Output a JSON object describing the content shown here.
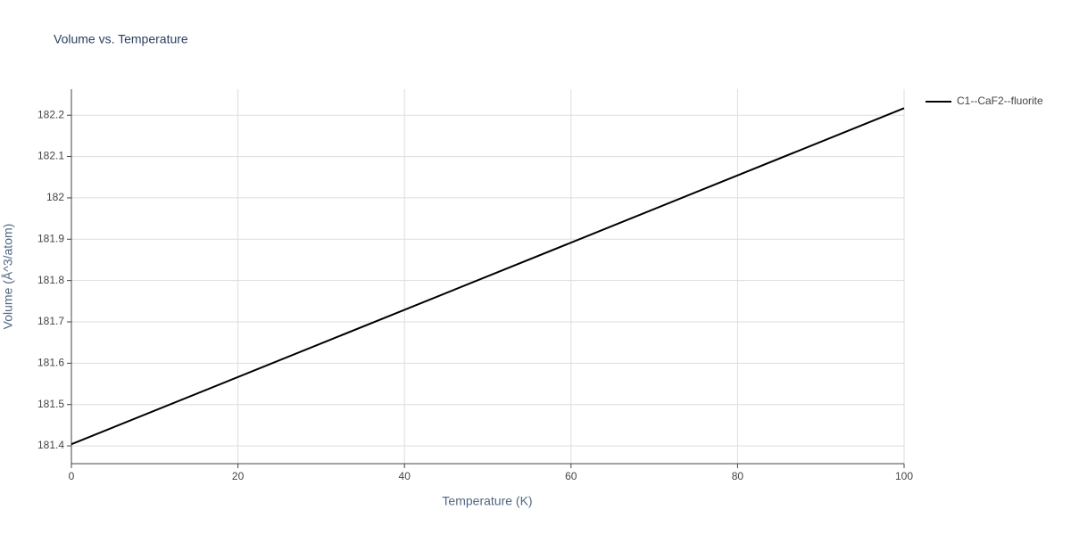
{
  "chart_data": {
    "type": "line",
    "title": "Volume vs. Temperature",
    "x_label": "Temperature (K)",
    "y_label": "Volume (Å^3/atom)",
    "x": [
      0,
      100
    ],
    "series": [
      {
        "name": "C1--CaF2--fluorite",
        "color": "#000000",
        "values": [
          181.404,
          182.217
        ]
      }
    ],
    "xlim": [
      0,
      100
    ],
    "xticks": [
      0,
      20,
      40,
      60,
      80,
      100
    ],
    "ylim": [
      181.357,
      182.263
    ],
    "yticks": [
      181.4,
      181.5,
      181.6,
      181.7,
      181.8,
      181.9,
      182,
      182.1,
      182.2
    ],
    "grid": true,
    "legend": "top-right"
  }
}
